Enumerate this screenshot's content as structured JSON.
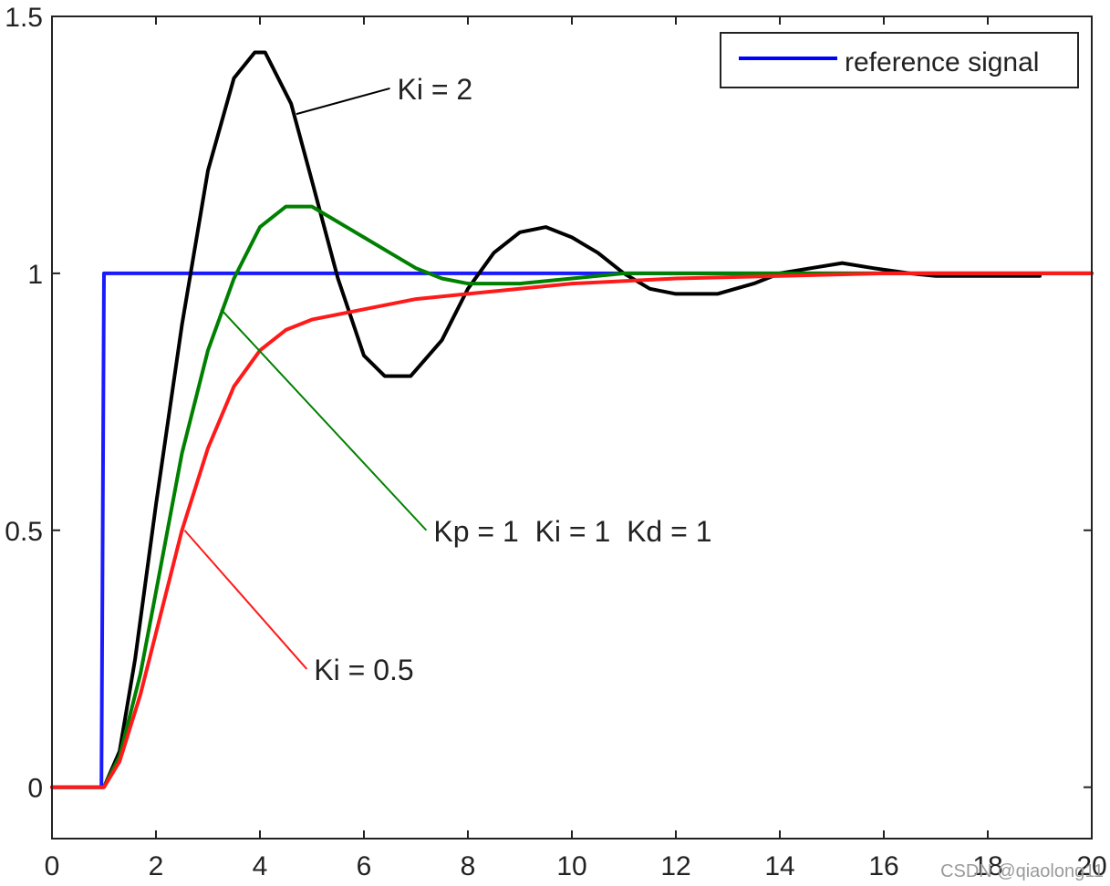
{
  "chart_data": {
    "type": "line",
    "title": "",
    "xlabel": "",
    "ylabel": "",
    "xlim": [
      0,
      20
    ],
    "ylim": [
      -0.1,
      1.5
    ],
    "x_ticks": [
      0,
      2,
      4,
      6,
      8,
      10,
      12,
      14,
      16,
      18,
      20
    ],
    "x_tick_labels": [
      "0",
      "2",
      "4",
      "6",
      "8",
      "10",
      "12",
      "14",
      "16",
      "18",
      "20"
    ],
    "y_ticks": [
      0,
      0.5,
      1,
      1.5
    ],
    "y_tick_labels": [
      "0",
      "0.5",
      "1",
      "1.5"
    ],
    "grid": false,
    "legend": {
      "position": "top-right",
      "entries": [
        {
          "label": "reference signal",
          "color": "#0000ff"
        }
      ]
    },
    "series": [
      {
        "name": "reference signal",
        "color": "#1a1aff",
        "points": [
          [
            0,
            0
          ],
          [
            0.95,
            0
          ],
          [
            1.0,
            1.0
          ],
          [
            20,
            1.0
          ]
        ]
      },
      {
        "color": "#000000",
        "points": [
          [
            0,
            0
          ],
          [
            1.0,
            0
          ],
          [
            1.3,
            0.07
          ],
          [
            1.6,
            0.25
          ],
          [
            2.0,
            0.55
          ],
          [
            2.5,
            0.9
          ],
          [
            3.0,
            1.2
          ],
          [
            3.5,
            1.38
          ],
          [
            3.9,
            1.43
          ],
          [
            4.1,
            1.43
          ],
          [
            4.6,
            1.33
          ],
          [
            5.0,
            1.18
          ],
          [
            5.5,
            0.99
          ],
          [
            6.0,
            0.84
          ],
          [
            6.4,
            0.8
          ],
          [
            6.9,
            0.8
          ],
          [
            7.5,
            0.87
          ],
          [
            8.0,
            0.97
          ],
          [
            8.5,
            1.04
          ],
          [
            9.0,
            1.08
          ],
          [
            9.5,
            1.09
          ],
          [
            10.0,
            1.07
          ],
          [
            10.5,
            1.04
          ],
          [
            11.0,
            1.0
          ],
          [
            11.5,
            0.97
          ],
          [
            12.0,
            0.96
          ],
          [
            12.8,
            0.96
          ],
          [
            13.5,
            0.98
          ],
          [
            14.0,
            1.0
          ],
          [
            14.6,
            1.01
          ],
          [
            15.2,
            1.02
          ],
          [
            15.8,
            1.01
          ],
          [
            16.5,
            1.0
          ],
          [
            17.0,
            0.995
          ],
          [
            18.0,
            0.995
          ],
          [
            19.0,
            0.995
          ]
        ]
      },
      {
        "color": "#008000",
        "points": [
          [
            0,
            0
          ],
          [
            1.0,
            0
          ],
          [
            1.3,
            0.06
          ],
          [
            1.7,
            0.22
          ],
          [
            2.0,
            0.38
          ],
          [
            2.5,
            0.65
          ],
          [
            3.0,
            0.85
          ],
          [
            3.5,
            0.99
          ],
          [
            4.0,
            1.09
          ],
          [
            4.5,
            1.13
          ],
          [
            5.0,
            1.13
          ],
          [
            5.5,
            1.1
          ],
          [
            6.0,
            1.07
          ],
          [
            6.5,
            1.04
          ],
          [
            7.0,
            1.01
          ],
          [
            7.5,
            0.99
          ],
          [
            8.0,
            0.98
          ],
          [
            9.0,
            0.98
          ],
          [
            10.0,
            0.99
          ],
          [
            11.0,
            1.0
          ],
          [
            13.0,
            1.0
          ],
          [
            20.0,
            1.0
          ]
        ]
      },
      {
        "color": "#ff1a1a",
        "points": [
          [
            0,
            0
          ],
          [
            1.0,
            0
          ],
          [
            1.3,
            0.05
          ],
          [
            1.7,
            0.18
          ],
          [
            2.0,
            0.3
          ],
          [
            2.5,
            0.5
          ],
          [
            3.0,
            0.66
          ],
          [
            3.5,
            0.78
          ],
          [
            4.0,
            0.85
          ],
          [
            4.5,
            0.89
          ],
          [
            5.0,
            0.91
          ],
          [
            6.0,
            0.93
          ],
          [
            7.0,
            0.95
          ],
          [
            8.0,
            0.96
          ],
          [
            9.0,
            0.97
          ],
          [
            10.0,
            0.98
          ],
          [
            12.0,
            0.99
          ],
          [
            14.0,
            0.995
          ],
          [
            16.0,
            1.0
          ],
          [
            20.0,
            1.0
          ]
        ]
      }
    ],
    "annotations": [
      {
        "text": "Ki = 2",
        "color": "#000000",
        "text_at": [
          6.5,
          1.36
        ],
        "arrow_to": [
          4.7,
          1.31
        ]
      },
      {
        "text": "Kp = 1  Ki = 1  Kd = 1",
        "color": "#008000",
        "text_at": [
          7.2,
          0.5
        ],
        "arrow_to": [
          3.25,
          0.93
        ]
      },
      {
        "text": "Ki = 0.5",
        "color": "#ff1a1a",
        "text_at": [
          4.9,
          0.23
        ],
        "arrow_to": [
          2.55,
          0.5
        ]
      }
    ]
  },
  "watermark": "CSDN @qiaolong11"
}
